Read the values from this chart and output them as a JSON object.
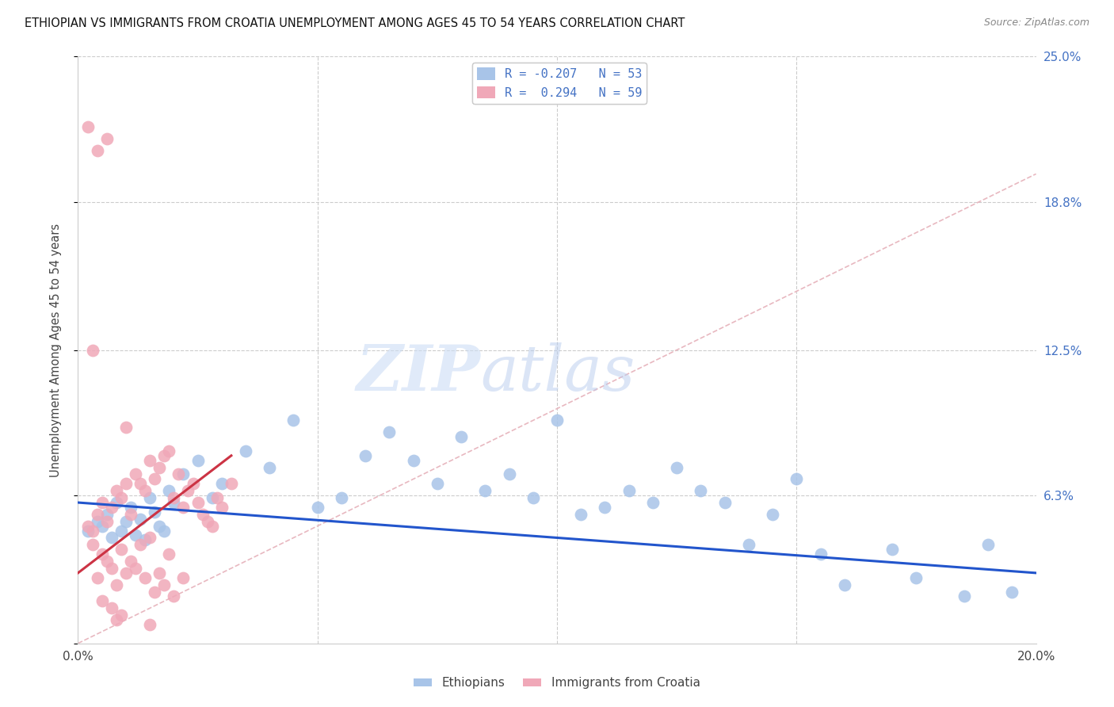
{
  "title": "ETHIOPIAN VS IMMIGRANTS FROM CROATIA UNEMPLOYMENT AMONG AGES 45 TO 54 YEARS CORRELATION CHART",
  "source": "Source: ZipAtlas.com",
  "ylabel": "Unemployment Among Ages 45 to 54 years",
  "xlim": [
    0.0,
    0.2
  ],
  "ylim": [
    0.0,
    0.25
  ],
  "background_color": "#ffffff",
  "grid_color": "#cccccc",
  "blue_color": "#a8c4e8",
  "pink_color": "#f0a8b8",
  "blue_line_color": "#2255cc",
  "pink_line_color": "#cc3344",
  "diag_line_color": "#e8b8c0",
  "title_fontsize": 10.5,
  "right_tick_color": "#4472c4",
  "blue_R": -0.207,
  "blue_N": 53,
  "pink_R": 0.294,
  "pink_N": 59,
  "blue_x": [
    0.002,
    0.004,
    0.005,
    0.006,
    0.007,
    0.008,
    0.009,
    0.01,
    0.011,
    0.012,
    0.013,
    0.014,
    0.015,
    0.016,
    0.017,
    0.018,
    0.019,
    0.02,
    0.022,
    0.025,
    0.028,
    0.03,
    0.035,
    0.04,
    0.045,
    0.05,
    0.055,
    0.06,
    0.065,
    0.07,
    0.075,
    0.08,
    0.085,
    0.09,
    0.095,
    0.1,
    0.105,
    0.11,
    0.115,
    0.12,
    0.125,
    0.13,
    0.135,
    0.14,
    0.145,
    0.15,
    0.155,
    0.16,
    0.17,
    0.175,
    0.185,
    0.19,
    0.195
  ],
  "blue_y": [
    0.048,
    0.052,
    0.05,
    0.055,
    0.045,
    0.06,
    0.048,
    0.052,
    0.058,
    0.046,
    0.053,
    0.044,
    0.062,
    0.056,
    0.05,
    0.048,
    0.065,
    0.06,
    0.072,
    0.078,
    0.062,
    0.068,
    0.082,
    0.075,
    0.095,
    0.058,
    0.062,
    0.08,
    0.09,
    0.078,
    0.068,
    0.088,
    0.065,
    0.072,
    0.062,
    0.095,
    0.055,
    0.058,
    0.065,
    0.06,
    0.075,
    0.065,
    0.06,
    0.042,
    0.055,
    0.07,
    0.038,
    0.025,
    0.04,
    0.028,
    0.02,
    0.042,
    0.022
  ],
  "pink_x": [
    0.002,
    0.003,
    0.004,
    0.005,
    0.006,
    0.007,
    0.008,
    0.009,
    0.01,
    0.011,
    0.012,
    0.013,
    0.014,
    0.015,
    0.016,
    0.017,
    0.018,
    0.019,
    0.02,
    0.021,
    0.022,
    0.023,
    0.024,
    0.025,
    0.026,
    0.027,
    0.028,
    0.029,
    0.03,
    0.032,
    0.003,
    0.005,
    0.007,
    0.009,
    0.011,
    0.013,
    0.015,
    0.017,
    0.019,
    0.004,
    0.006,
    0.008,
    0.01,
    0.012,
    0.014,
    0.016,
    0.018,
    0.02,
    0.022,
    0.005,
    0.007,
    0.009,
    0.003,
    0.006,
    0.01,
    0.002,
    0.004,
    0.008,
    0.015
  ],
  "pink_y": [
    0.05,
    0.048,
    0.055,
    0.06,
    0.052,
    0.058,
    0.065,
    0.062,
    0.068,
    0.055,
    0.072,
    0.068,
    0.065,
    0.078,
    0.07,
    0.075,
    0.08,
    0.082,
    0.062,
    0.072,
    0.058,
    0.065,
    0.068,
    0.06,
    0.055,
    0.052,
    0.05,
    0.062,
    0.058,
    0.068,
    0.042,
    0.038,
    0.032,
    0.04,
    0.035,
    0.042,
    0.045,
    0.03,
    0.038,
    0.028,
    0.035,
    0.025,
    0.03,
    0.032,
    0.028,
    0.022,
    0.025,
    0.02,
    0.028,
    0.018,
    0.015,
    0.012,
    0.125,
    0.215,
    0.092,
    0.22,
    0.21,
    0.01,
    0.008
  ],
  "blue_trend_x": [
    0.0,
    0.2
  ],
  "blue_trend_y": [
    0.06,
    0.03
  ],
  "pink_trend_x": [
    0.0,
    0.032
  ],
  "pink_trend_y": [
    0.03,
    0.08
  ]
}
